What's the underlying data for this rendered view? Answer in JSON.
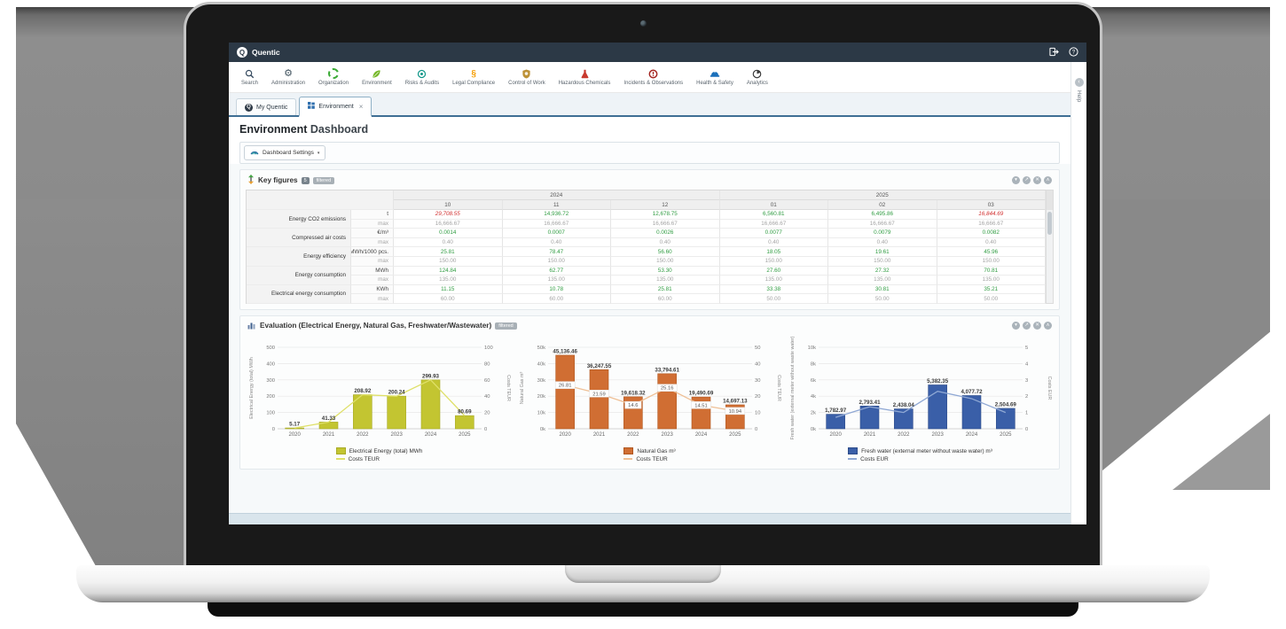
{
  "app": {
    "brand": "Quentic"
  },
  "header_actions": {
    "logout": "logout",
    "help": "?"
  },
  "nav": {
    "items": [
      {
        "label": "Search",
        "icon": "search",
        "color": "#34495e"
      },
      {
        "label": "Administration",
        "icon": "gear",
        "color": "#41535f"
      },
      {
        "label": "Organization",
        "icon": "segmented-ring",
        "color": "#3aaa35"
      },
      {
        "label": "Environment",
        "icon": "leaf",
        "color": "#76b82a"
      },
      {
        "label": "Risks & Audits",
        "icon": "target",
        "color": "#0f9688"
      },
      {
        "label": "Legal Compliance",
        "icon": "section-sign",
        "color": "#f59c00"
      },
      {
        "label": "Control of Work",
        "icon": "shield",
        "color": "#bd9136"
      },
      {
        "label": "Hazardous Chemicals",
        "icon": "flask",
        "color": "#c8392e"
      },
      {
        "label": "Incidents & Observations",
        "icon": "alert-ring",
        "color": "#a32420"
      },
      {
        "label": "Health & Safety",
        "icon": "helmet",
        "color": "#1a6fba"
      },
      {
        "label": "Analytics",
        "icon": "pie",
        "color": "#3c3c3c"
      }
    ]
  },
  "tabs": [
    {
      "label": "My Quentic"
    },
    {
      "label": "Environment",
      "close_glyph": "×"
    }
  ],
  "page": {
    "title_main": "Environment",
    "title_sub": "Dashboard"
  },
  "toolbar": {
    "settings_label": "Dashboard Settings",
    "caret": "▾"
  },
  "help_rail": {
    "label": "Help",
    "collapse_glyph": "‹"
  },
  "panel_controls": [
    {
      "name": "panel-menu",
      "glyph": "▾"
    },
    {
      "name": "panel-popout",
      "glyph": "↗"
    },
    {
      "name": "panel-close",
      "glyph": "✕"
    },
    {
      "name": "panel-collapse",
      "glyph": "∧"
    }
  ],
  "panels": {
    "key_figures": {
      "title": "Key figures",
      "count_badge": "5",
      "filtered_badge": "filtered",
      "year_groups": [
        "2024",
        "2025"
      ],
      "months": [
        "10",
        "11",
        "12",
        "01",
        "02",
        "03"
      ],
      "metrics": [
        {
          "label": "Energy CO2 emissions",
          "unit": "t",
          "max_label": "max",
          "values": [
            "29,708.55",
            "14,936.72",
            "12,678.75",
            "6,560.81",
            "6,495.86",
            "16,844.69"
          ],
          "value_alert": [
            true,
            false,
            false,
            false,
            false,
            true
          ],
          "max_values": [
            "16,666.67",
            "16,666.67",
            "16,666.67",
            "16,666.67",
            "16,666.67",
            "16,666.67"
          ]
        },
        {
          "label": "Compressed air costs",
          "unit": "€/m³",
          "max_label": "max",
          "values": [
            "0.0014",
            "0.0007",
            "0.0026",
            "0.0077",
            "0.0079",
            "0.0082"
          ],
          "value_alert": [
            false,
            false,
            false,
            false,
            false,
            false
          ],
          "max_values": [
            "0.40",
            "0.40",
            "0.40",
            "0.40",
            "0.40",
            "0.40"
          ]
        },
        {
          "label": "Energy efficiency",
          "unit": "MWh/1000 pcs.",
          "max_label": "max",
          "values": [
            "25.81",
            "78.47",
            "56.60",
            "18.05",
            "19.61",
            "45.96"
          ],
          "value_alert": [
            false,
            false,
            false,
            false,
            false,
            false
          ],
          "max_values": [
            "150.00",
            "150.00",
            "150.00",
            "150.00",
            "150.00",
            "150.00"
          ]
        },
        {
          "label": "Energy consumption",
          "unit": "MWh",
          "max_label": "max",
          "values": [
            "124.84",
            "62.77",
            "53.30",
            "27.60",
            "27.32",
            "70.81"
          ],
          "value_alert": [
            false,
            false,
            false,
            false,
            false,
            false
          ],
          "max_values": [
            "135.00",
            "135.00",
            "135.00",
            "135.00",
            "135.00",
            "135.00"
          ]
        },
        {
          "label": "Electrical energy consumption",
          "unit": "KWh",
          "max_label": "max",
          "values": [
            "11.15",
            "10.78",
            "25.81",
            "33.38",
            "30.81",
            "35.21"
          ],
          "value_alert": [
            false,
            false,
            false,
            false,
            false,
            false
          ],
          "max_values": [
            "60.00",
            "60.00",
            "60.00",
            "50.00",
            "50.00",
            "50.00"
          ]
        }
      ]
    },
    "evaluation": {
      "title": "Evaluation (Electrical Energy, Natural Gas, Freshwater/Wastewater)",
      "filtered_badge": "filtered"
    }
  },
  "chart_data": [
    {
      "type": "bar",
      "categories": [
        "2020",
        "2021",
        "2022",
        "2023",
        "2024",
        "2025"
      ],
      "series": [
        {
          "name": "Electrical Energy (total) MWh",
          "kind": "bar",
          "values": [
            5.17,
            41.33,
            208.92,
            200.24,
            299.93,
            80.69
          ],
          "labels": [
            "5.17",
            "41.33",
            "208.92",
            "200.24",
            "299.93",
            "80.69"
          ],
          "color": "#c3c531",
          "stroke": "#a9ab27"
        },
        {
          "name": "Costs TEUR",
          "kind": "line",
          "values": [
            1.0,
            8.3,
            41.8,
            40.0,
            60.0,
            16.1
          ],
          "color": "#dfe069"
        }
      ],
      "left_axis": {
        "label": "Electrical Energy (total)  MWh",
        "max": 500,
        "ticks": [
          0,
          100,
          200,
          300,
          400,
          500
        ],
        "tick_labels": [
          "0",
          "100",
          "200",
          "300",
          "400",
          "500"
        ]
      },
      "right_axis": {
        "label": "Costs TEUR",
        "max": 100,
        "ticks": [
          0,
          20,
          40,
          60,
          80,
          100
        ],
        "tick_labels": [
          "0",
          "20",
          "40",
          "60",
          "80",
          "100"
        ]
      }
    },
    {
      "type": "bar",
      "categories": [
        "2020",
        "2021",
        "2022",
        "2023",
        "2024",
        "2025"
      ],
      "series": [
        {
          "name": "Natural Gas m³",
          "kind": "bar",
          "values": [
            45136.46,
            36247.55,
            19618.32,
            33794.61,
            19490.69,
            14697.13
          ],
          "labels": [
            "45,136.46",
            "36,247.55",
            "19,618.32",
            "33,794.61",
            "19,490.69",
            "14,697.13"
          ],
          "color": "#d06e33",
          "stroke": "#b0571f"
        },
        {
          "name": "Costs TEUR",
          "kind": "line",
          "values": [
            26.81,
            21.59,
            14.6,
            25.16,
            14.51,
            10.94
          ],
          "value_labels": [
            "26.81",
            "21.59",
            "14.6",
            "25.16",
            "14.51",
            "10.94"
          ],
          "color": "#efc096"
        }
      ],
      "left_axis": {
        "label": "Natural Gas m³",
        "max": 50000,
        "ticks": [
          0,
          10000,
          20000,
          30000,
          40000,
          50000
        ],
        "tick_labels": [
          "0k",
          "10k",
          "20k",
          "30k",
          "40k",
          "50k"
        ]
      },
      "right_axis": {
        "label": "Costs TEUR",
        "max": 50,
        "ticks": [
          0,
          10,
          20,
          30,
          40,
          50
        ],
        "tick_labels": [
          "0",
          "10",
          "20",
          "30",
          "40",
          "50"
        ]
      }
    },
    {
      "type": "bar",
      "categories": [
        "2020",
        "2021",
        "2022",
        "2023",
        "2024",
        "2025"
      ],
      "series": [
        {
          "name": "Fresh water (external meter without waste water) m³",
          "kind": "bar",
          "values": [
            1782.97,
            2793.41,
            2438.04,
            5382.35,
            4077.72,
            2504.69
          ],
          "labels": [
            "1,782.97",
            "2,793.41",
            "2,438.04",
            "5,382.35",
            "4,077.72",
            "2,504.69"
          ],
          "color": "#3a5fa8",
          "stroke": "#2d4c8a"
        },
        {
          "name": "Costs EUR",
          "kind": "line",
          "values": [
            0.7,
            1.35,
            1.0,
            2.3,
            1.85,
            1.0
          ],
          "color": "#8fa8d4"
        }
      ],
      "left_axis": {
        "label": "Fresh water (external meter without waste water)",
        "max": 10000,
        "ticks": [
          0,
          2000,
          4000,
          6000,
          8000,
          10000
        ],
        "tick_labels": [
          "0k",
          "2k",
          "4k",
          "6k",
          "8k",
          "10k"
        ]
      },
      "right_axis": {
        "label": "Costs EUR",
        "max": 5,
        "ticks": [
          0,
          1,
          2,
          3,
          4,
          5
        ],
        "tick_labels": [
          "0",
          "1",
          "2",
          "3",
          "4",
          "5"
        ]
      }
    }
  ],
  "colors": {
    "header_bg": "#2c3946",
    "tab_line": "#3f6f94",
    "value_green": "#2f9c41",
    "value_red": "#d23030",
    "max_gray": "#a5a5a5",
    "bar_yellow": "#c3c531",
    "bar_orange": "#d06e33",
    "bar_blue": "#3a5fa8"
  }
}
